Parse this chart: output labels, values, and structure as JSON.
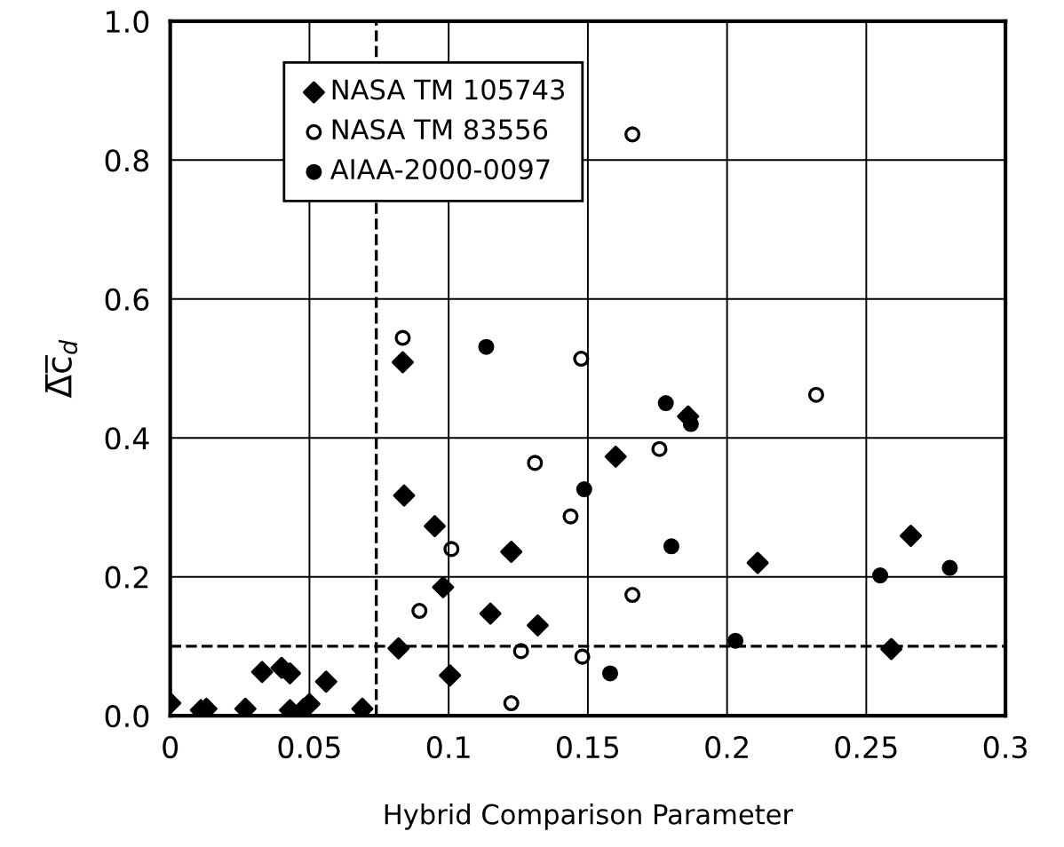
{
  "chart_data": {
    "type": "scatter",
    "xlabel": "Hybrid Comparison Parameter",
    "ylabel": "Δ̅c̅$_{d}$",
    "xlim": [
      0,
      0.3
    ],
    "ylim": [
      0,
      1.0
    ],
    "xticks": [
      {
        "value": 0,
        "label": "0"
      },
      0.05,
      0.1,
      0.15,
      0.2,
      0.25,
      0.3
    ],
    "yticks": [
      {
        "value": 0,
        "label": "0.0"
      },
      0.2,
      0.4,
      0.6,
      0.8,
      {
        "value": 1.0,
        "label": "1.0"
      }
    ],
    "grid": true,
    "legend": "top left",
    "series": [
      {
        "name": "NASA TM 105743",
        "color": "#000000",
        "marker": "diamond",
        "x": [
          0,
          0.011,
          0.013,
          0.027,
          0.033,
          0.04,
          0.043,
          0.043,
          0.048,
          0.05,
          0.056,
          0.069,
          0.082,
          0.0835,
          0.084,
          0.095,
          0.098,
          0.1005,
          0.115,
          0.1225,
          0.132,
          0.16,
          0.186,
          0.211,
          0.266,
          0.259
        ],
        "values": [
          0.018,
          0.008,
          0.01,
          0.01,
          0.063,
          0.069,
          0.061,
          0.008,
          0.01,
          0.017,
          0.049,
          0.01,
          0.097,
          0.509,
          0.317,
          0.273,
          0.185,
          0.058,
          0.147,
          0.236,
          0.13,
          0.373,
          0.431,
          0.22,
          0.259,
          0.096
        ]
      },
      {
        "name": "NASA TM 83556",
        "color": "#000000",
        "marker": "circle",
        "x": [
          0.0835,
          0.0895,
          0.101,
          0.1225,
          0.126,
          0.131,
          0.1476,
          0.1438,
          0.148,
          0.166,
          0.166,
          0.1757,
          0.232
        ],
        "values": [
          0.544,
          0.151,
          0.24,
          0.018,
          0.093,
          0.364,
          0.514,
          0.287,
          0.085,
          0.837,
          0.174,
          0.384,
          0.462
        ]
      },
      {
        "name": "AIAA-2000-0097",
        "color": "#000000",
        "marker": "circle",
        "x": [
          0.1135,
          0.1487,
          0.158,
          0.178,
          0.18,
          0.187,
          0.203,
          0.255,
          0.28
        ],
        "values": [
          0.531,
          0.326,
          0.061,
          0.45,
          0.244,
          0.42,
          0.108,
          0.202,
          0.213
        ]
      }
    ],
    "ref_lines": [
      {
        "axis": "x",
        "value": 0.074,
        "line_style": "dashed",
        "color": "#000000"
      },
      {
        "axis": "y",
        "value": 0.1,
        "line_style": "dashed",
        "color": "#000000"
      }
    ]
  }
}
